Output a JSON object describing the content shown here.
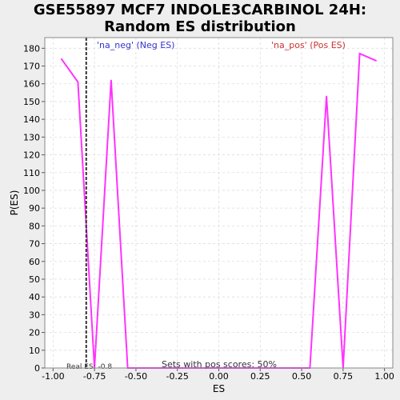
{
  "title": "GSE55897 MCF7 INDOLE3CARBINOL 24H:\nRandom ES distribution",
  "chart_data": {
    "type": "line",
    "xlabel": "ES",
    "ylabel": "P(ES)",
    "xlim": [
      -1.05,
      1.05
    ],
    "ylim": [
      0,
      186
    ],
    "xticks": [
      -1.0,
      -0.75,
      -0.5,
      -0.25,
      0.0,
      0.25,
      0.5,
      0.75,
      1.0
    ],
    "xtick_labels": [
      "-1.00",
      "-0.75",
      "-0.50",
      "-0.25",
      "0.00",
      "0.25",
      "0.50",
      "0.75",
      "1.00"
    ],
    "yticks": [
      0,
      10,
      20,
      30,
      40,
      50,
      60,
      70,
      80,
      90,
      100,
      110,
      120,
      130,
      140,
      150,
      160,
      170,
      180
    ],
    "grid": true,
    "legend": [
      {
        "label": "'na_neg' (Neg ES)",
        "color": "#3333cc",
        "placement": "top-left"
      },
      {
        "label": "'na_pos' (Pos ES)",
        "color": "#cc3333",
        "placement": "top-right"
      }
    ],
    "series": [
      {
        "color": "#ff33ff",
        "x": [
          -0.95,
          -0.85,
          -0.75,
          -0.65,
          -0.55,
          -0.45,
          -0.35,
          -0.25,
          -0.15,
          -0.05,
          0.05,
          0.15,
          0.25,
          0.35,
          0.45,
          0.55,
          0.65,
          0.75,
          0.85,
          0.95
        ],
        "y": [
          174,
          161,
          0,
          162,
          0,
          0,
          0,
          0,
          0,
          0,
          0,
          0,
          0,
          0,
          0,
          0,
          153,
          0,
          177,
          173
        ]
      }
    ],
    "real_es": {
      "value": -0.8,
      "label": "Real ES: -0.8"
    },
    "annotation": "Sets with pos scores: 50%"
  }
}
